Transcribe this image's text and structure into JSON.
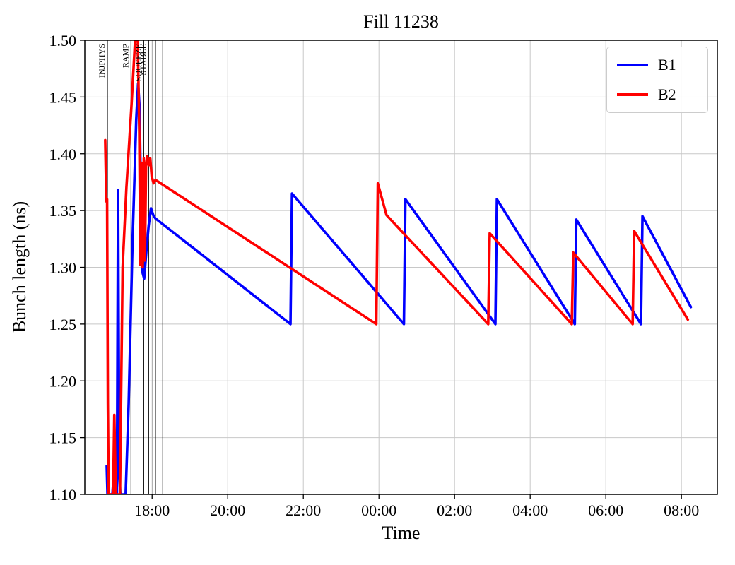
{
  "chart_data": {
    "type": "line",
    "title": "Fill 11238",
    "xlabel": "Time",
    "ylabel": "Bunch length (ns)",
    "grid": true,
    "xlim": [
      16.22,
      32.95
    ],
    "ylim": [
      1.1,
      1.5
    ],
    "x_unit": "hours of day, +24 after midnight",
    "xticks": [
      {
        "t": 18,
        "label": "18:00"
      },
      {
        "t": 20,
        "label": "20:00"
      },
      {
        "t": 22,
        "label": "22:00"
      },
      {
        "t": 24,
        "label": "00:00"
      },
      {
        "t": 26,
        "label": "02:00"
      },
      {
        "t": 28,
        "label": "04:00"
      },
      {
        "t": 30,
        "label": "06:00"
      },
      {
        "t": 32,
        "label": "08:00"
      }
    ],
    "yticks": [
      1.1,
      1.15,
      1.2,
      1.25,
      1.3,
      1.35,
      1.4,
      1.45,
      1.5
    ],
    "legend": {
      "position": "upper right",
      "entries": [
        {
          "label": "B1",
          "color": "#0000ff"
        },
        {
          "label": "B2",
          "color": "#ff0000"
        }
      ]
    },
    "event_lines": [
      {
        "t": 16.82,
        "label": "INJPHYS"
      },
      {
        "t": 17.44,
        "label": "RAMP"
      },
      {
        "t": 17.78,
        "label": "SQUEEZE"
      },
      {
        "t": 17.91,
        "label": "STABLE"
      },
      {
        "t": 18.02,
        "label": ""
      },
      {
        "t": 18.09,
        "label": ""
      },
      {
        "t": 18.28,
        "label": ""
      }
    ],
    "series": [
      {
        "name": "B1",
        "color": "#0000ff",
        "points": [
          [
            16.8,
            1.125
          ],
          [
            16.82,
            1.1
          ],
          [
            16.95,
            1.1
          ],
          [
            16.98,
            1.115
          ],
          [
            17.01,
            1.1
          ],
          [
            17.07,
            1.1
          ],
          [
            17.1,
            1.368
          ],
          [
            17.13,
            1.12
          ],
          [
            17.16,
            1.1
          ],
          [
            17.3,
            1.1
          ],
          [
            17.38,
            1.18
          ],
          [
            17.48,
            1.32
          ],
          [
            17.58,
            1.43
          ],
          [
            17.63,
            1.462
          ],
          [
            17.67,
            1.44
          ],
          [
            17.71,
            1.35
          ],
          [
            17.75,
            1.295
          ],
          [
            17.79,
            1.29
          ],
          [
            17.85,
            1.315
          ],
          [
            17.91,
            1.337
          ],
          [
            17.97,
            1.352
          ],
          [
            18.03,
            1.346
          ],
          [
            18.09,
            1.343
          ],
          [
            21.66,
            1.25
          ],
          [
            21.7,
            1.365
          ],
          [
            24.66,
            1.25
          ],
          [
            24.7,
            1.36
          ],
          [
            27.08,
            1.25
          ],
          [
            27.12,
            1.36
          ],
          [
            29.18,
            1.25
          ],
          [
            29.22,
            1.342
          ],
          [
            30.93,
            1.25
          ],
          [
            30.97,
            1.345
          ],
          [
            32.25,
            1.265
          ]
        ]
      },
      {
        "name": "B2",
        "color": "#ff0000",
        "points": [
          [
            16.76,
            1.412
          ],
          [
            16.79,
            1.358
          ],
          [
            16.81,
            1.36
          ],
          [
            16.83,
            1.18
          ],
          [
            16.85,
            1.1
          ],
          [
            16.97,
            1.1
          ],
          [
            17.0,
            1.17
          ],
          [
            17.04,
            1.1
          ],
          [
            17.15,
            1.1
          ],
          [
            17.22,
            1.3
          ],
          [
            17.32,
            1.37
          ],
          [
            17.45,
            1.44
          ],
          [
            17.55,
            1.5
          ],
          [
            17.62,
            1.5
          ],
          [
            17.66,
            1.42
          ],
          [
            17.69,
            1.302
          ],
          [
            17.72,
            1.392
          ],
          [
            17.75,
            1.3
          ],
          [
            17.78,
            1.396
          ],
          [
            17.81,
            1.306
          ],
          [
            17.84,
            1.39
          ],
          [
            17.87,
            1.398
          ],
          [
            17.91,
            1.39
          ],
          [
            17.95,
            1.396
          ],
          [
            17.99,
            1.38
          ],
          [
            18.04,
            1.374
          ],
          [
            18.09,
            1.377
          ],
          [
            23.93,
            1.25
          ],
          [
            23.97,
            1.374
          ],
          [
            24.2,
            1.346
          ],
          [
            26.89,
            1.25
          ],
          [
            26.93,
            1.33
          ],
          [
            29.1,
            1.25
          ],
          [
            29.14,
            1.313
          ],
          [
            30.71,
            1.25
          ],
          [
            30.75,
            1.332
          ],
          [
            32.17,
            1.254
          ]
        ]
      }
    ]
  }
}
